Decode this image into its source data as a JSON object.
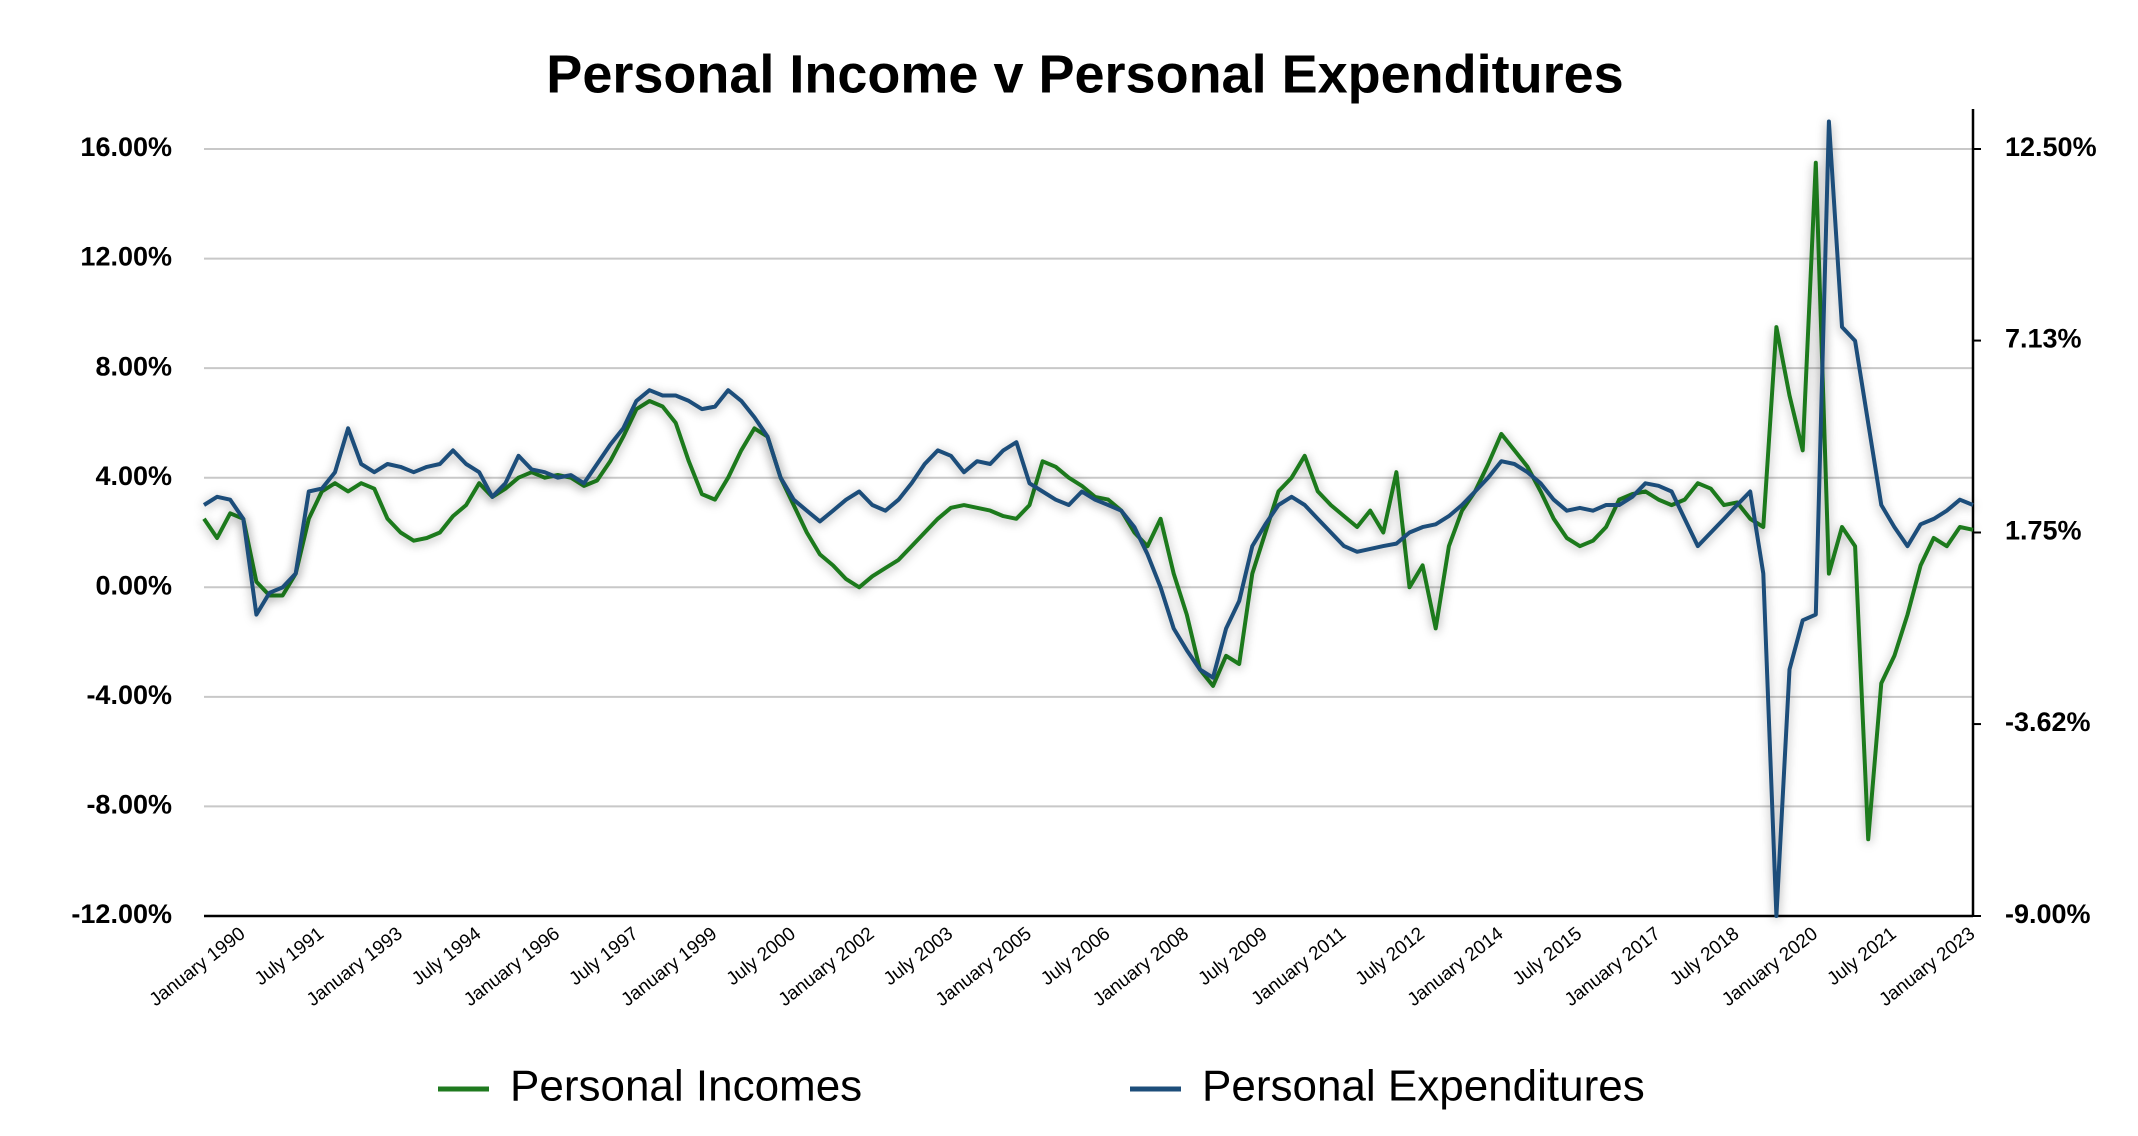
{
  "chart_data": {
    "type": "line",
    "title": "Personal Income v Personal Expenditures",
    "categories": [
      null,
      null,
      null,
      "January 1990",
      null,
      null,
      null,
      null,
      null,
      "July 1991",
      null,
      null,
      null,
      null,
      null,
      "January 1993",
      null,
      null,
      null,
      null,
      null,
      "July 1994",
      null,
      null,
      null,
      null,
      null,
      "January 1996",
      null,
      null,
      null,
      null,
      null,
      "July 1997",
      null,
      null,
      null,
      null,
      null,
      "January 1999",
      null,
      null,
      null,
      null,
      null,
      "July 2000",
      null,
      null,
      null,
      null,
      null,
      "January 2002",
      null,
      null,
      null,
      null,
      null,
      "July 2003",
      null,
      null,
      null,
      null,
      null,
      "January 2005",
      null,
      null,
      null,
      null,
      null,
      "July 2006",
      null,
      null,
      null,
      null,
      null,
      "January 2008",
      null,
      null,
      null,
      null,
      null,
      "July 2009",
      null,
      null,
      null,
      null,
      null,
      "January 2011",
      null,
      null,
      null,
      null,
      null,
      "July 2012",
      null,
      null,
      null,
      null,
      null,
      "January 2014",
      null,
      null,
      null,
      null,
      null,
      "July 2015",
      null,
      null,
      null,
      null,
      null,
      "January 2017",
      null,
      null,
      null,
      null,
      null,
      "July 2018",
      null,
      null,
      null,
      null,
      null,
      "January 2020",
      null,
      null,
      null,
      null,
      null,
      "July 2021",
      null,
      null,
      null,
      null,
      null,
      "January 2023"
    ],
    "series": [
      {
        "name": "Personal Incomes",
        "color": "#1f7a1f",
        "axis": "y",
        "values": [
          2.5,
          1.8,
          2.7,
          2.5,
          0.2,
          -0.3,
          -0.3,
          0.5,
          2.5,
          3.5,
          3.8,
          3.5,
          3.8,
          3.6,
          2.5,
          2.0,
          1.7,
          1.8,
          2.0,
          2.6,
          3.0,
          3.8,
          3.3,
          3.6,
          4.0,
          4.2,
          4.0,
          4.1,
          4.0,
          3.7,
          3.9,
          4.6,
          5.5,
          6.5,
          6.8,
          6.6,
          6.0,
          4.6,
          3.4,
          3.2,
          4.0,
          5.0,
          5.8,
          5.5,
          4.0,
          3.0,
          2.0,
          1.2,
          0.8,
          0.3,
          0.0,
          0.4,
          0.7,
          1.0,
          1.5,
          2.0,
          2.5,
          2.9,
          3.0,
          2.9,
          2.8,
          2.6,
          2.5,
          3.0,
          4.6,
          4.4,
          4.0,
          3.7,
          3.3,
          3.2,
          2.8,
          2.0,
          1.5,
          2.5,
          0.5,
          -1.0,
          -3.0,
          -3.6,
          -2.5,
          -2.8,
          0.5,
          2.0,
          3.5,
          4.0,
          4.8,
          3.5,
          3.0,
          2.6,
          2.2,
          2.8,
          2.0,
          4.2,
          0.0,
          0.8,
          -1.5,
          1.5,
          2.8,
          3.5,
          4.5,
          5.6,
          5.0,
          4.4,
          3.5,
          2.5,
          1.8,
          1.5,
          1.7,
          2.2,
          3.2,
          3.4,
          3.5,
          3.2,
          3.0,
          3.2,
          3.8,
          3.6,
          3.0,
          3.1,
          2.5,
          2.2,
          9.5,
          7.0,
          5.0,
          15.5,
          0.5,
          2.2,
          1.5,
          -9.2,
          -3.5,
          -2.5,
          -1.0,
          0.8,
          1.8,
          1.5,
          2.2,
          2.1
        ]
      },
      {
        "name": "Personal Expenditures",
        "color": "#1d4e7a",
        "axis": "y2",
        "values": [
          2.52,
          2.75,
          2.67,
          2.13,
          -0.55,
          0.06,
          0.21,
          0.6,
          2.9,
          2.98,
          3.44,
          4.67,
          3.67,
          3.44,
          3.67,
          3.59,
          3.44,
          3.59,
          3.67,
          4.05,
          3.67,
          3.44,
          2.75,
          3.13,
          3.9,
          3.52,
          3.44,
          3.29,
          3.36,
          3.13,
          3.67,
          4.21,
          4.67,
          5.44,
          5.74,
          5.59,
          5.59,
          5.44,
          5.21,
          5.28,
          5.74,
          5.44,
          4.98,
          4.44,
          3.29,
          2.67,
          2.36,
          2.06,
          2.36,
          2.67,
          2.9,
          2.52,
          2.36,
          2.67,
          3.13,
          3.67,
          4.05,
          3.9,
          3.44,
          3.75,
          3.67,
          4.05,
          4.28,
          3.13,
          2.9,
          2.67,
          2.52,
          2.9,
          2.67,
          2.52,
          2.36,
          1.9,
          1.14,
          0.21,
          -0.94,
          -1.55,
          -2.09,
          -2.32,
          -0.94,
          -0.17,
          1.37,
          1.98,
          2.52,
          2.75,
          2.52,
          2.13,
          1.75,
          1.37,
          1.21,
          1.29,
          1.37,
          1.44,
          1.75,
          1.9,
          1.98,
          2.21,
          2.52,
          2.9,
          3.29,
          3.75,
          3.67,
          3.44,
          3.13,
          2.67,
          2.36,
          2.44,
          2.36,
          2.52,
          2.52,
          2.75,
          3.13,
          3.06,
          2.9,
          2.13,
          1.37,
          1.75,
          2.13,
          2.52,
          2.9,
          0.6,
          -9.0,
          -2.09,
          -0.71,
          -0.55,
          13.27,
          7.51,
          7.12,
          4.82,
          2.52,
          1.9,
          1.37,
          1.98,
          2.13,
          2.36,
          2.67,
          2.52
        ]
      }
    ],
    "ylim": [
      -12,
      16
    ],
    "yticks": [
      {
        "value": 16,
        "label": "16.00%"
      },
      {
        "value": 12,
        "label": "12.00%"
      },
      {
        "value": 8,
        "label": "8.00%"
      },
      {
        "value": 4,
        "label": "4.00%"
      },
      {
        "value": 0,
        "label": "0.00%"
      },
      {
        "value": -4,
        "label": "-4.00%"
      },
      {
        "value": -8,
        "label": "-8.00%"
      },
      {
        "value": -12,
        "label": "-12.00%"
      }
    ],
    "y2lim": [
      -9,
      12.5
    ],
    "y2ticks": [
      {
        "value": 12.5,
        "label": "12.50%"
      },
      {
        "value": 7.13,
        "label": "7.13%"
      },
      {
        "value": 1.75,
        "label": "1.75%"
      },
      {
        "value": -3.62,
        "label": "-3.62%"
      },
      {
        "value": -9,
        "label": "-9.00%"
      }
    ],
    "grid": true,
    "legend": "bottom"
  }
}
